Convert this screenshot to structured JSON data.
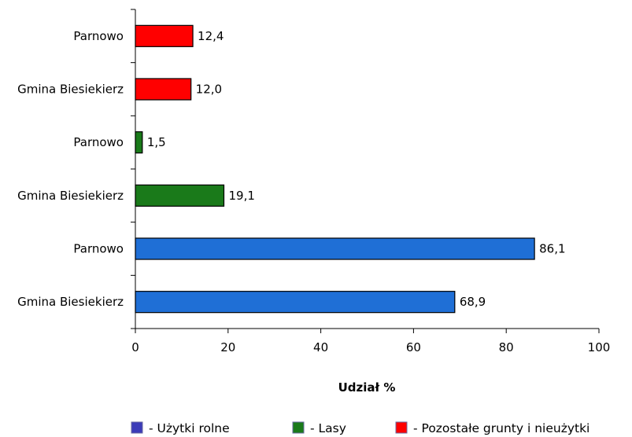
{
  "chart_data": {
    "type": "bar",
    "orientation": "horizontal",
    "xlabel": "Udział %",
    "xlim": [
      0,
      100
    ],
    "x_ticks": [
      0,
      20,
      40,
      60,
      80,
      100
    ],
    "grid": false,
    "legend_position": "bottom",
    "bars": [
      {
        "category": "Parnowo",
        "value": 12.4,
        "label": "12,4",
        "series": 2
      },
      {
        "category": "Gmina Biesiekierz",
        "value": 12.0,
        "label": "12,0",
        "series": 2
      },
      {
        "category": "Parnowo",
        "value": 1.5,
        "label": "1,5",
        "series": 1
      },
      {
        "category": "Gmina Biesiekierz",
        "value": 19.1,
        "label": "19,1",
        "series": 1
      },
      {
        "category": "Parnowo",
        "value": 86.1,
        "label": "86,1",
        "series": 0
      },
      {
        "category": "Gmina Biesiekierz",
        "value": 68.9,
        "label": "68,9",
        "series": 0
      }
    ],
    "series": [
      {
        "name": "- Użytki rolne",
        "color": "#1f6fd6",
        "legend_color": "#3b3bb8"
      },
      {
        "name": "- Lasy",
        "color": "#1a7a1a",
        "legend_color": "#1a7a1a"
      },
      {
        "name": "- Pozostałe grunty i nieużytki",
        "color": "#ff0000",
        "legend_color": "#ff0000"
      }
    ]
  }
}
